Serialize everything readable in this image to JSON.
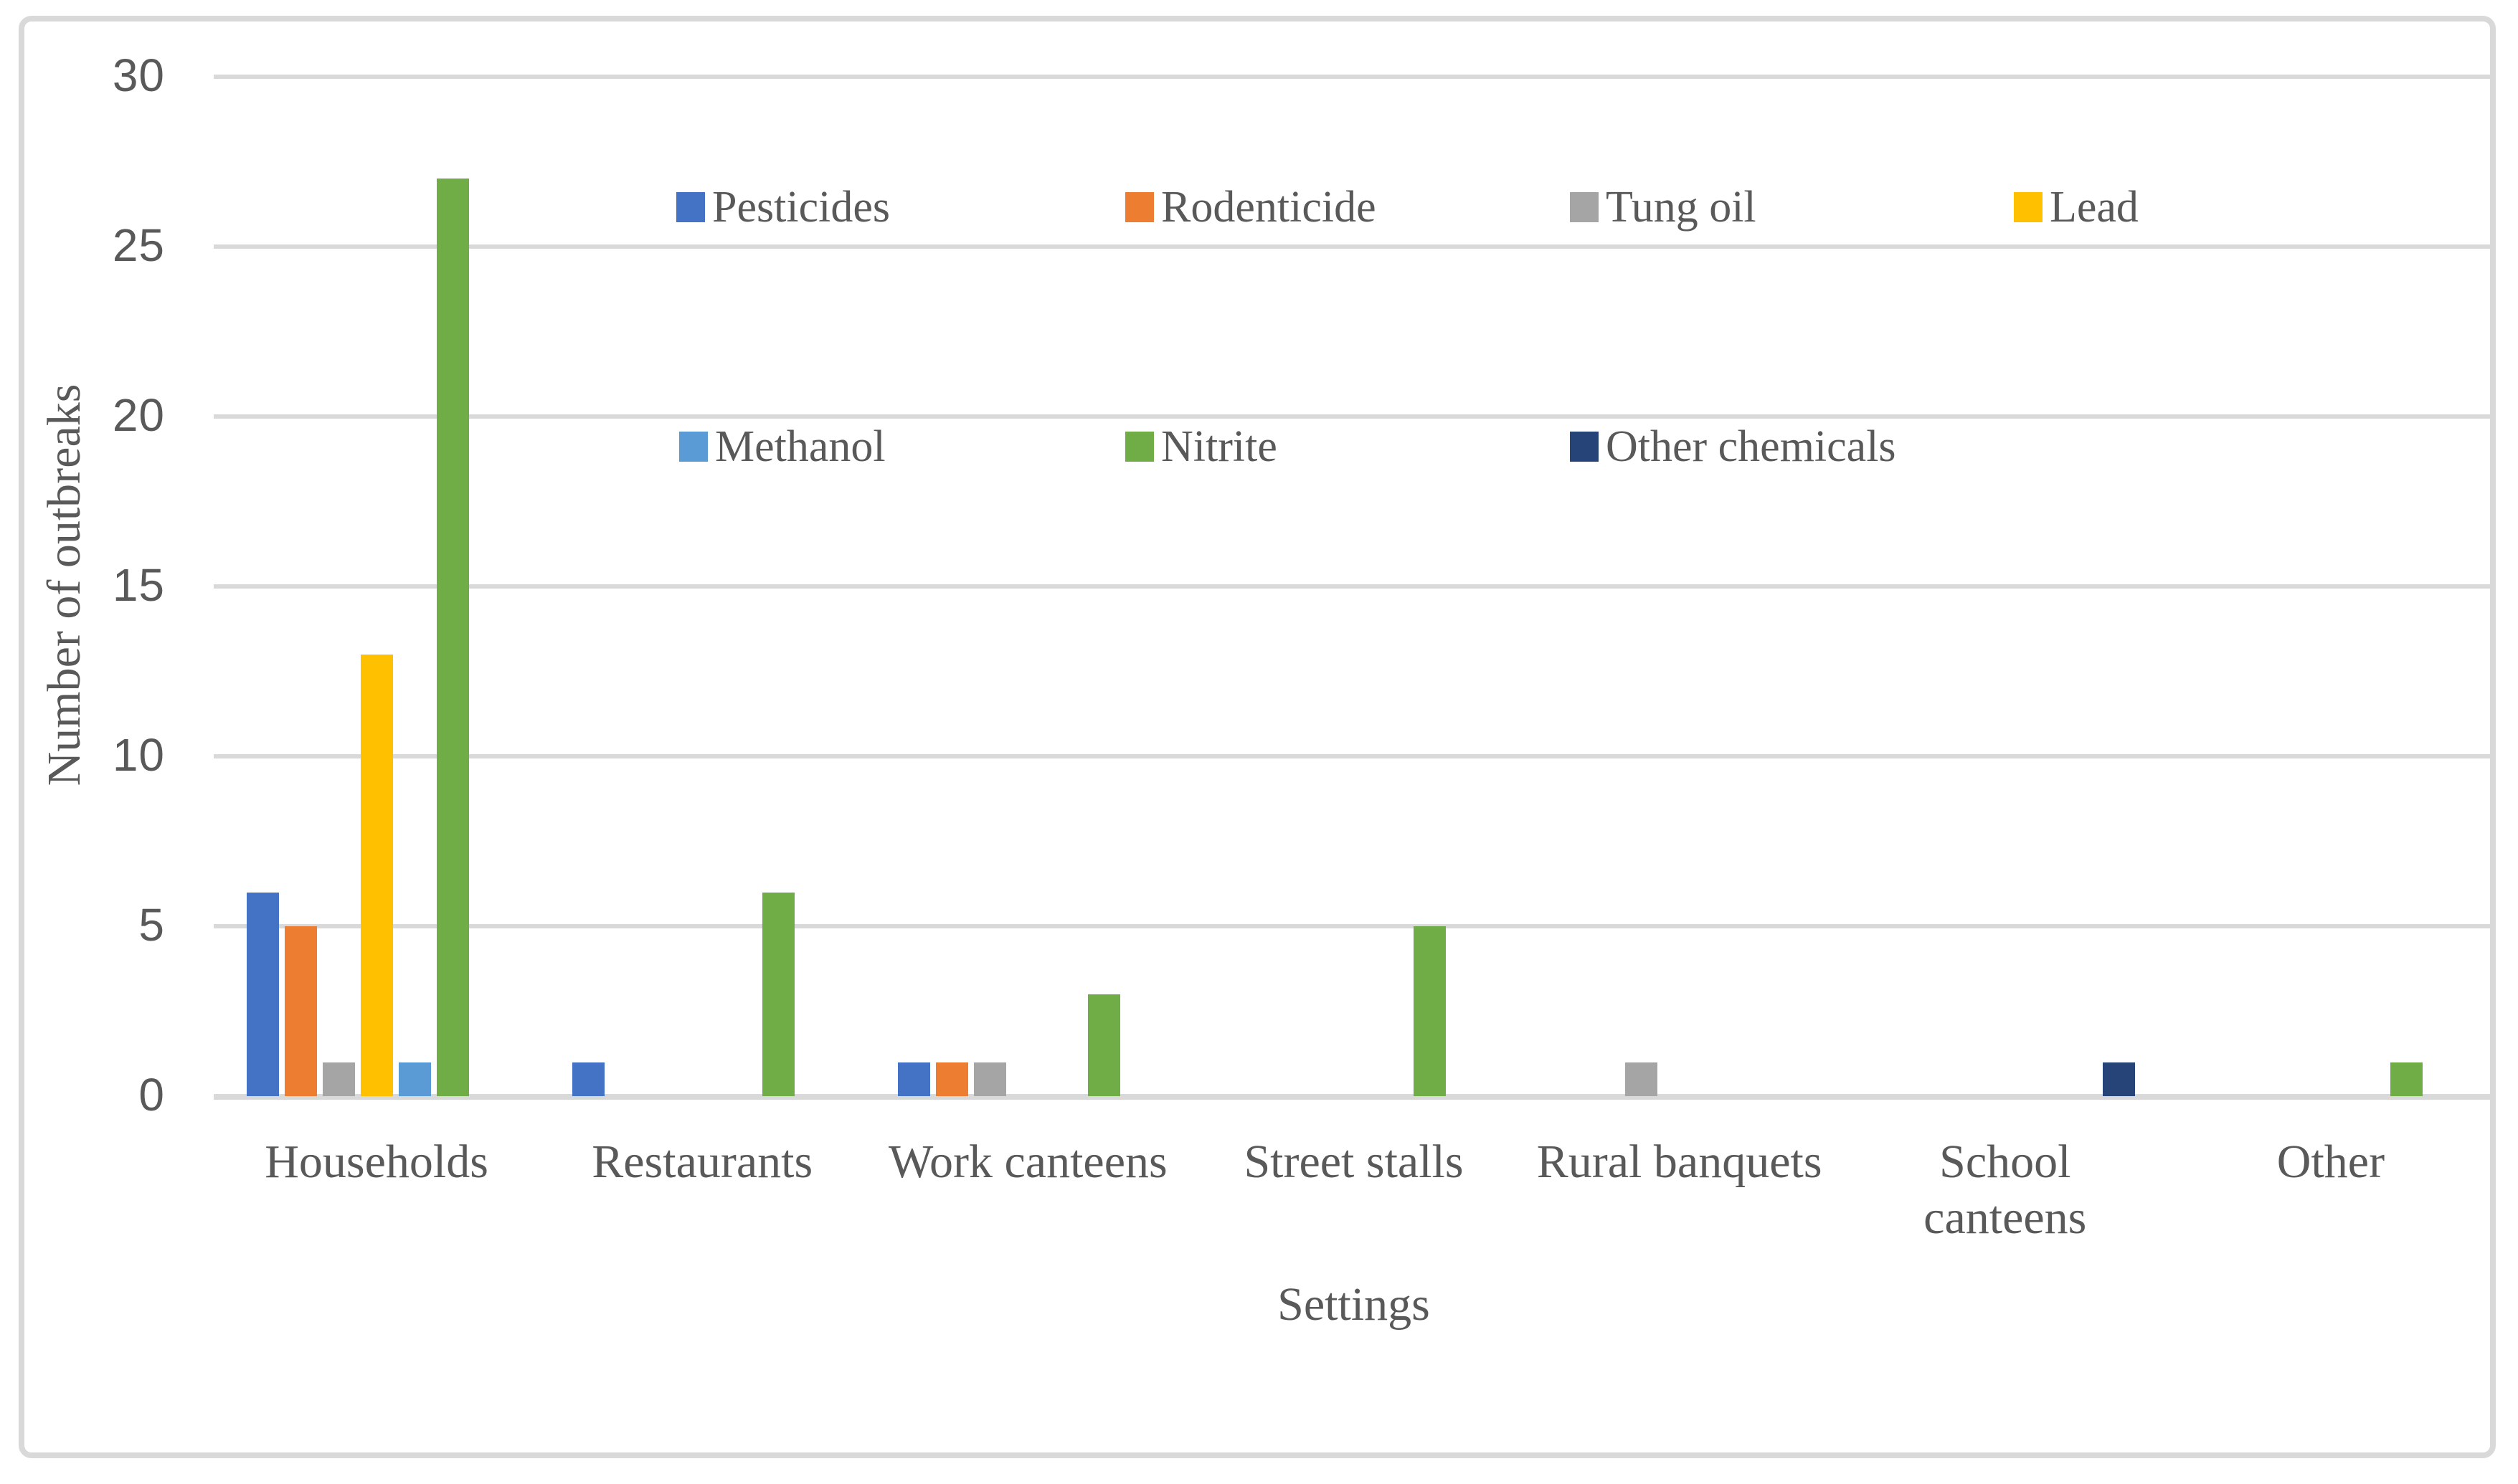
{
  "chart_data": {
    "type": "bar",
    "title": "",
    "xlabel": "Settings",
    "ylabel": "Number of outbreaks",
    "ylim": [
      0,
      30
    ],
    "yticks": [
      0,
      5,
      10,
      15,
      20,
      25,
      30
    ],
    "grid": true,
    "legend_position": "inside-top-two-rows",
    "categories": [
      "Households",
      "Restaurants",
      "Work canteens",
      "Street stalls",
      "Rural banquets",
      "School\ncanteens",
      "Other"
    ],
    "series": [
      {
        "name": "Pesticides",
        "color": "#4472C4",
        "values": [
          6,
          1,
          1,
          0,
          0,
          0,
          0
        ]
      },
      {
        "name": "Rodenticide",
        "color": "#ED7D31",
        "values": [
          5,
          0,
          1,
          0,
          0,
          0,
          0
        ]
      },
      {
        "name": "Tung oil",
        "color": "#A5A5A5",
        "values": [
          1,
          0,
          1,
          0,
          1,
          0,
          0
        ]
      },
      {
        "name": "Lead",
        "color": "#FFC000",
        "values": [
          13,
          0,
          0,
          0,
          0,
          0,
          0
        ]
      },
      {
        "name": "Methanol",
        "color": "#5B9BD5",
        "values": [
          1,
          0,
          0,
          0,
          0,
          0,
          0
        ]
      },
      {
        "name": "Nitrite",
        "color": "#70AD47",
        "values": [
          27,
          6,
          3,
          5,
          0,
          0,
          1
        ]
      },
      {
        "name": "Other chemicals",
        "color": "#264478",
        "values": [
          0,
          0,
          0,
          0,
          0,
          1,
          0
        ]
      }
    ],
    "colors": {
      "grid": "#D9D9D9",
      "frame": "#D9D9D9",
      "text": "#595959"
    }
  }
}
